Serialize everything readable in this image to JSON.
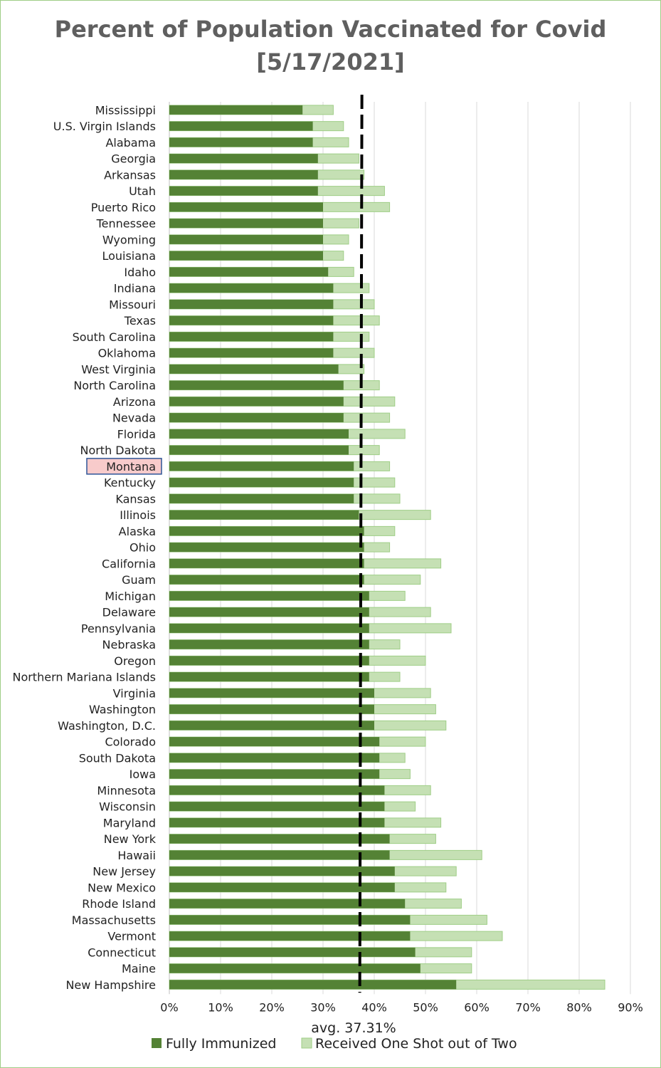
{
  "chart_data": {
    "type": "bar",
    "orientation": "horizontal",
    "stacked": false,
    "title": "Percent of Population Vaccinated for Covid",
    "subtitle": "[5/17/2021]",
    "xlim": [
      0,
      90
    ],
    "xticks": [
      "0%",
      "10%",
      "20%",
      "30%",
      "40%",
      "50%",
      "60%",
      "70%",
      "80%",
      "90%"
    ],
    "grid": true,
    "legend_position": "bottom",
    "highlighted_category": "Montana",
    "average_label": "avg. 37.31%",
    "average_value": 37.31,
    "categories": [
      "Mississippi",
      "U.S. Virgin Islands",
      "Alabama",
      "Georgia",
      "Arkansas",
      "Utah",
      "Puerto Rico",
      "Tennessee",
      "Wyoming",
      "Louisiana",
      "Idaho",
      "Indiana",
      "Missouri",
      "Texas",
      "South Carolina",
      "Oklahoma",
      "West Virginia",
      "North Carolina",
      "Arizona",
      "Nevada",
      "Florida",
      "North Dakota",
      "Montana",
      "Kentucky",
      "Kansas",
      "Illinois",
      "Alaska",
      "Ohio",
      "California",
      "Guam",
      "Michigan",
      "Delaware",
      "Pennsylvania",
      "Nebraska",
      "Oregon",
      "Northern Mariana Islands",
      "Virginia",
      "Washington",
      "Washington, D.C.",
      "Colorado",
      "South Dakota",
      "Iowa",
      "Minnesota",
      "Wisconsin",
      "Maryland",
      "New York",
      "Hawaii",
      "New Jersey",
      "New Mexico",
      "Rhode Island",
      "Massachusetts",
      "Vermont",
      "Connecticut",
      "Maine",
      "New Hampshire"
    ],
    "series": [
      {
        "name": "Fully Immunized",
        "color": "#548235",
        "values": [
          26,
          28,
          28,
          29,
          29,
          29,
          30,
          30,
          30,
          30,
          31,
          32,
          32,
          32,
          32,
          32,
          33,
          34,
          34,
          34,
          35,
          35,
          36,
          36,
          36,
          37,
          38,
          38,
          38,
          38,
          39,
          39,
          39,
          39,
          39,
          39,
          40,
          40,
          40,
          41,
          41,
          41,
          42,
          42,
          42,
          43,
          43,
          44,
          44,
          46,
          47,
          47,
          48,
          49,
          56
        ]
      },
      {
        "name": "Received One Shot out of Two",
        "color": "#c5e0b4",
        "values": [
          32,
          34,
          35,
          37,
          38,
          42,
          43,
          37,
          35,
          34,
          36,
          39,
          40,
          41,
          39,
          40,
          38,
          41,
          44,
          43,
          46,
          41,
          43,
          44,
          45,
          51,
          44,
          43,
          53,
          49,
          46,
          51,
          55,
          45,
          50,
          45,
          51,
          52,
          54,
          50,
          46,
          47,
          51,
          48,
          53,
          52,
          61,
          56,
          54,
          57,
          62,
          65,
          59,
          59,
          85
        ]
      }
    ]
  }
}
